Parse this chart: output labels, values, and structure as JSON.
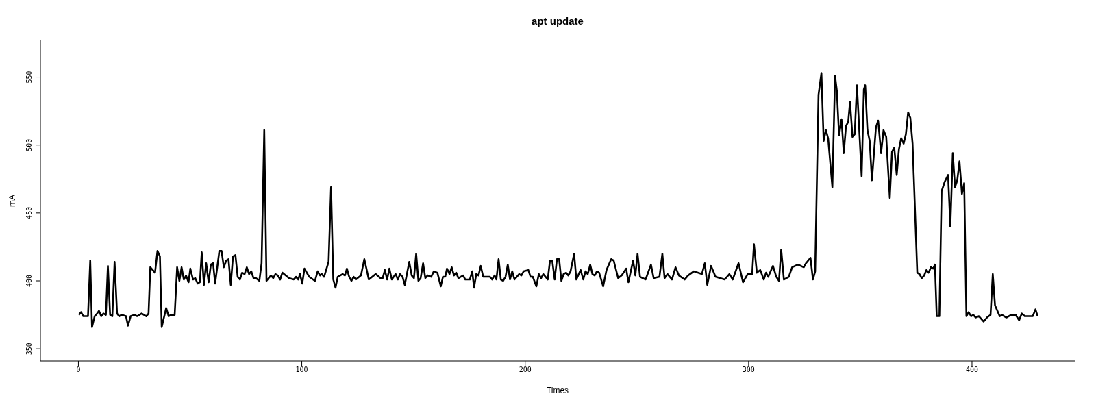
{
  "chart_data": {
    "type": "line",
    "title": "apt update",
    "xlabel": "Times",
    "ylabel": "mA",
    "xlim": [
      -17,
      446
    ],
    "ylim": [
      341,
      577
    ],
    "xticks": [
      0,
      100,
      200,
      300,
      400
    ],
    "yticks": [
      350,
      400,
      450,
      500,
      550
    ],
    "marker": "none",
    "line_style": "solid",
    "series": [
      {
        "color": "#000000",
        "x": [
          0.2,
          1.2,
          2.2,
          4.3,
          5.3,
          6.1,
          7.3,
          8.4,
          9.2,
          10.2,
          11.2,
          12.3,
          13.2,
          14.2,
          15.2,
          16.2,
          17.3,
          18.3,
          19.3,
          21.3,
          22.2,
          23.4,
          25.2,
          26.3,
          28.3,
          30.4,
          31.4,
          32.2,
          34.3,
          35.4,
          36.5,
          37.3,
          39.3,
          40.4,
          41.4,
          43.1,
          44.2,
          45.2,
          46.2,
          47.2,
          48.2,
          49.3,
          50.1,
          51.3,
          52.3,
          53.4,
          54.4,
          55.2,
          56.2,
          57.2,
          58.3,
          59.3,
          60.3,
          61.2,
          63.1,
          64.1,
          65.1,
          66.2,
          67.2,
          68.2,
          69.2,
          70.3,
          71.3,
          72.3,
          73.3,
          74.4,
          75.4,
          76.4,
          77.4,
          78.4,
          79.5,
          81,
          82,
          83.2,
          84.2,
          85.2,
          86.2,
          87.2,
          88.2,
          89.3,
          90.3,
          91.3,
          94.3,
          96.4,
          97.4,
          98.4,
          99.2,
          100.2,
          101.2,
          103.3,
          105.9,
          107.1,
          108.2,
          109,
          110,
          112,
          113.1,
          114.1,
          115.1,
          116.1,
          118.3,
          119.3,
          120.2,
          121.2,
          122.2,
          123.2,
          124.2,
          126.5,
          128,
          130,
          133.1,
          135.2,
          136.2,
          137.2,
          138.2,
          139.2,
          140.3,
          142,
          143,
          144,
          145.1,
          146.1,
          148.1,
          149.2,
          150.2,
          151.2,
          152.2,
          153.2,
          154.3,
          155.3,
          156.3,
          157.9,
          159.1,
          160.7,
          162.2,
          163.2,
          164.2,
          165,
          166.1,
          167.1,
          168.1,
          169.1,
          170.1,
          172.2,
          173.2,
          175.2,
          176.3,
          177.1,
          178.1,
          179.1,
          180.1,
          181.2,
          184.2,
          185.2,
          186.3,
          187.1,
          188.1,
          189.1,
          190.1,
          191.2,
          192.2,
          193.2,
          194.2,
          195.2,
          197.3,
          198.3,
          199.3,
          201.4,
          202.4,
          203.4,
          205,
          206.1,
          207.1,
          208.1,
          210.1,
          211.1,
          212.1,
          213.2,
          214.2,
          215.2,
          216.2,
          217.2,
          218.3,
          219.3,
          220.3,
          221.9,
          222.9,
          224.8,
          226,
          227,
          228,
          229.1,
          230.1,
          231.1,
          232.1,
          233.1,
          234.9,
          236.4,
          238.5,
          239.6,
          241.6,
          243.2,
          245.2,
          246.2,
          248.3,
          249.3,
          250.3,
          251.4,
          253.9,
          256.3,
          257.5,
          260.1,
          261.4,
          262.4,
          263.7,
          265.7,
          267.3,
          268.8,
          271.4,
          272.9,
          275.5,
          279.1,
          280.4,
          281.5,
          283.2,
          285.2,
          289.3,
          291.4,
          292.9,
          295.5,
          297.5,
          299.6,
          301.6,
          302.4,
          303.7,
          305.2,
          306.8,
          307.8,
          308.8,
          310.9,
          312.4,
          313.6,
          314.6,
          315.8,
          318,
          319.5,
          322.1,
          324.7,
          325.7,
          327.7,
          328.8,
          329.8,
          331.3,
          332.6,
          333.6,
          334.6,
          335.6,
          337.5,
          338.7,
          339.5,
          340.5,
          341.6,
          342.6,
          343.6,
          344.6,
          345.4,
          346.5,
          347.5,
          348.5,
          350.6,
          351.6,
          352.2,
          353.2,
          354.2,
          355.2,
          357,
          358,
          359.3,
          360.4,
          361.6,
          363.2,
          364.2,
          365.2,
          366.3,
          367.3,
          368.3,
          369.4,
          370.4,
          371.4,
          372.4,
          373.4,
          375.5,
          376.5,
          377.5,
          378.6,
          379.6,
          380.6,
          381.6,
          382.6,
          383.4,
          384.2,
          385.4,
          386.4,
          387.8,
          389.3,
          390.3,
          391.4,
          392.4,
          393.4,
          394.4,
          395.5,
          396.5,
          397.5,
          398.5,
          399.6,
          400.6,
          401.6,
          403.1,
          405.2,
          406.7,
          408.3,
          409.3,
          410.3,
          412.4,
          413.4,
          415.4,
          417.5,
          419.5,
          421.1,
          422.3,
          423.6,
          427.2,
          428.4,
          429.4
        ],
        "values": [
          375,
          377,
          374,
          374,
          415,
          366,
          374,
          376,
          378,
          374,
          376,
          375,
          411,
          375,
          374,
          414,
          376,
          374,
          375,
          374,
          367,
          374,
          375,
          374,
          376,
          374,
          376,
          410,
          406,
          422,
          418,
          366,
          380,
          374,
          375,
          375,
          410,
          400,
          410,
          401,
          404,
          399,
          409,
          401,
          402,
          398,
          399,
          421,
          397,
          413,
          399,
          412,
          413,
          398,
          422,
          422,
          410,
          415,
          416,
          397,
          418,
          419,
          403,
          401,
          406,
          405,
          410,
          405,
          407,
          402,
          402,
          400,
          413,
          511,
          400,
          402,
          404,
          402,
          405,
          404,
          401,
          406,
          402,
          401,
          403,
          401,
          405,
          398,
          409,
          403,
          400,
          407,
          404,
          405,
          403,
          414,
          469,
          401,
          395,
          403,
          405,
          404,
          409,
          403,
          400,
          403,
          401,
          404,
          416,
          401,
          405,
          402,
          402,
          408,
          401,
          409,
          401,
          405,
          401,
          405,
          403,
          397,
          414,
          404,
          402,
          420,
          400,
          402,
          413,
          402,
          404,
          403,
          407,
          406,
          396,
          403,
          403,
          409,
          405,
          410,
          404,
          406,
          402,
          404,
          401,
          401,
          407,
          395,
          405,
          404,
          411,
          403,
          403,
          401,
          404,
          401,
          416,
          401,
          400,
          403,
          412,
          401,
          407,
          401,
          405,
          404,
          407,
          408,
          403,
          403,
          396,
          405,
          402,
          405,
          401,
          415,
          415,
          401,
          416,
          416,
          400,
          405,
          406,
          404,
          407,
          420,
          401,
          408,
          401,
          407,
          405,
          412,
          405,
          404,
          407,
          406,
          396,
          408,
          416,
          415,
          402,
          404,
          409,
          399,
          415,
          404,
          420,
          403,
          401,
          412,
          402,
          403,
          420,
          402,
          405,
          401,
          410,
          404,
          401,
          404,
          407,
          405,
          413,
          397,
          411,
          403,
          401,
          405,
          401,
          413,
          399,
          405,
          405,
          427,
          406,
          408,
          401,
          406,
          403,
          411,
          403,
          400,
          423,
          401,
          403,
          410,
          412,
          410,
          413,
          417,
          401,
          407,
          537,
          553,
          503,
          511,
          505,
          469,
          551,
          540,
          507,
          519,
          494,
          514,
          517,
          532,
          506,
          508,
          544,
          477,
          541,
          544,
          511,
          503,
          474,
          513,
          518,
          494,
          511,
          506,
          461,
          495,
          498,
          478,
          497,
          505,
          501,
          508,
          524,
          520,
          501,
          406,
          405,
          402,
          404,
          408,
          406,
          410,
          409,
          412,
          374,
          374,
          466,
          473,
          478,
          440,
          494,
          469,
          474,
          488,
          464,
          472,
          374,
          377,
          374,
          375,
          373,
          374,
          370,
          373,
          375,
          405,
          382,
          374,
          375,
          373,
          375,
          375,
          371,
          376,
          374,
          374,
          379,
          374
        ]
      }
    ]
  }
}
